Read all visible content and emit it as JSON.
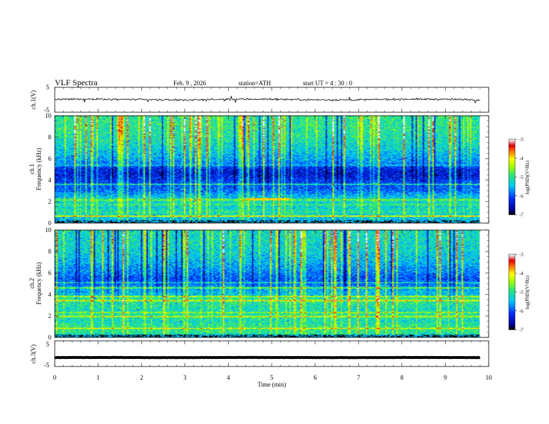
{
  "header": {
    "title": "VLF  Spectra",
    "date": "Feb. 9  , 2026",
    "station": "station=ATH",
    "start": "start  UT  =   4  : 30 : 0"
  },
  "chart_data": [
    {
      "type": "line",
      "name": "ch1-waveform",
      "ylabel": "ch.1(V)",
      "ylim": [
        -5,
        5
      ],
      "yticks": [
        "5",
        "-5"
      ],
      "xlim": [
        0,
        10
      ],
      "mean_level": 0.1,
      "noise_amplitude": 1.0,
      "line_color": "#000000"
    },
    {
      "type": "heatmap",
      "name": "ch1-spectrogram",
      "ylabel": "ch.1\nFrequency  (kHz)",
      "ylabel_line1": "ch.1",
      "ylabel_line2": "Frequency  (kHz)",
      "ylim": [
        0,
        10
      ],
      "yticks": [
        "0",
        "2",
        "4",
        "6",
        "8",
        "10"
      ],
      "xlim": [
        0,
        9.8
      ],
      "colorbar": {
        "label": "log(PSD)(V²/Hz)",
        "ticks": [
          "-7",
          "-6",
          "-5",
          "-4",
          "-3"
        ],
        "range": [
          -7,
          -3
        ]
      },
      "frequency_profile_kHz": [
        {
          "f": 0.0,
          "v": -5.6
        },
        {
          "f": 0.5,
          "v": -5.4
        },
        {
          "f": 1.0,
          "v": -5.1
        },
        {
          "f": 1.5,
          "v": -5.3
        },
        {
          "f": 2.0,
          "v": -5.2
        },
        {
          "f": 2.5,
          "v": -5.5
        },
        {
          "f": 3.0,
          "v": -5.9
        },
        {
          "f": 3.5,
          "v": -6.0
        },
        {
          "f": 4.0,
          "v": -6.2
        },
        {
          "f": 4.5,
          "v": -6.4
        },
        {
          "f": 5.0,
          "v": -6.3
        },
        {
          "f": 5.5,
          "v": -5.8
        },
        {
          "f": 6.0,
          "v": -5.6
        },
        {
          "f": 7.0,
          "v": -5.3
        },
        {
          "f": 8.0,
          "v": -5.1
        },
        {
          "f": 9.0,
          "v": -5.0
        },
        {
          "f": 10.0,
          "v": -5.0
        }
      ],
      "narrowband_lines_kHz": [
        {
          "f": 0.6,
          "v": -4.2
        },
        {
          "f": 1.7,
          "v": -5.0
        },
        {
          "f": 2.15,
          "v": -4.8
        },
        {
          "f": 3.6,
          "v": -5.2
        },
        {
          "f": 5.4,
          "v": -5.6
        }
      ],
      "events": [
        {
          "t_start": 4.4,
          "t_end": 5.4,
          "f": 2.2,
          "v": -3.9
        }
      ]
    },
    {
      "type": "heatmap",
      "name": "ch2-spectrogram",
      "ylabel": "ch.2\nFrequency  (kHz)",
      "ylabel_line1": "ch.2",
      "ylabel_line2": "Frequency  (kHz)",
      "ylim": [
        0,
        10
      ],
      "yticks": [
        "0",
        "2",
        "4",
        "6",
        "8",
        "10"
      ],
      "xlim": [
        0,
        9.8
      ],
      "colorbar": {
        "label": "log(PSD)(V²/Hz)",
        "ticks": [
          "-7",
          "-6",
          "-5",
          "-4",
          "-3"
        ],
        "range": [
          -7,
          -3
        ]
      },
      "frequency_profile_kHz": [
        {
          "f": 0.0,
          "v": -5.3
        },
        {
          "f": 0.5,
          "v": -5.0
        },
        {
          "f": 1.0,
          "v": -5.0
        },
        {
          "f": 1.5,
          "v": -5.2
        },
        {
          "f": 2.0,
          "v": -5.0
        },
        {
          "f": 2.5,
          "v": -5.2
        },
        {
          "f": 3.0,
          "v": -5.1
        },
        {
          "f": 3.5,
          "v": -4.9
        },
        {
          "f": 4.0,
          "v": -5.4
        },
        {
          "f": 4.5,
          "v": -5.6
        },
        {
          "f": 5.0,
          "v": -5.9
        },
        {
          "f": 5.5,
          "v": -6.0
        },
        {
          "f": 6.0,
          "v": -5.8
        },
        {
          "f": 7.0,
          "v": -5.5
        },
        {
          "f": 8.0,
          "v": -5.3
        },
        {
          "f": 9.0,
          "v": -5.2
        },
        {
          "f": 10.0,
          "v": -5.2
        }
      ],
      "narrowband_lines_kHz": [
        {
          "f": 0.8,
          "v": -4.3
        },
        {
          "f": 1.9,
          "v": -4.4
        },
        {
          "f": 2.3,
          "v": -4.6
        },
        {
          "f": 3.4,
          "v": -4.2
        },
        {
          "f": 3.8,
          "v": -4.4
        },
        {
          "f": 4.6,
          "v": -4.9
        },
        {
          "f": 5.1,
          "v": -5.3
        }
      ],
      "events": []
    },
    {
      "type": "line",
      "name": "ch3-waveform",
      "ylabel": "ch.3(V)",
      "ylim": [
        -5,
        5
      ],
      "yticks": [
        "5",
        "-5"
      ],
      "xlim": [
        0,
        10
      ],
      "mean_level": -1.5,
      "noise_amplitude": 0.15,
      "line_color": "#000000"
    }
  ],
  "xaxis": {
    "label": "Time  (min)",
    "range": [
      0,
      10
    ],
    "ticks": [
      "0",
      "1",
      "2",
      "3",
      "4",
      "5",
      "6",
      "7",
      "8",
      "9",
      "10"
    ]
  }
}
